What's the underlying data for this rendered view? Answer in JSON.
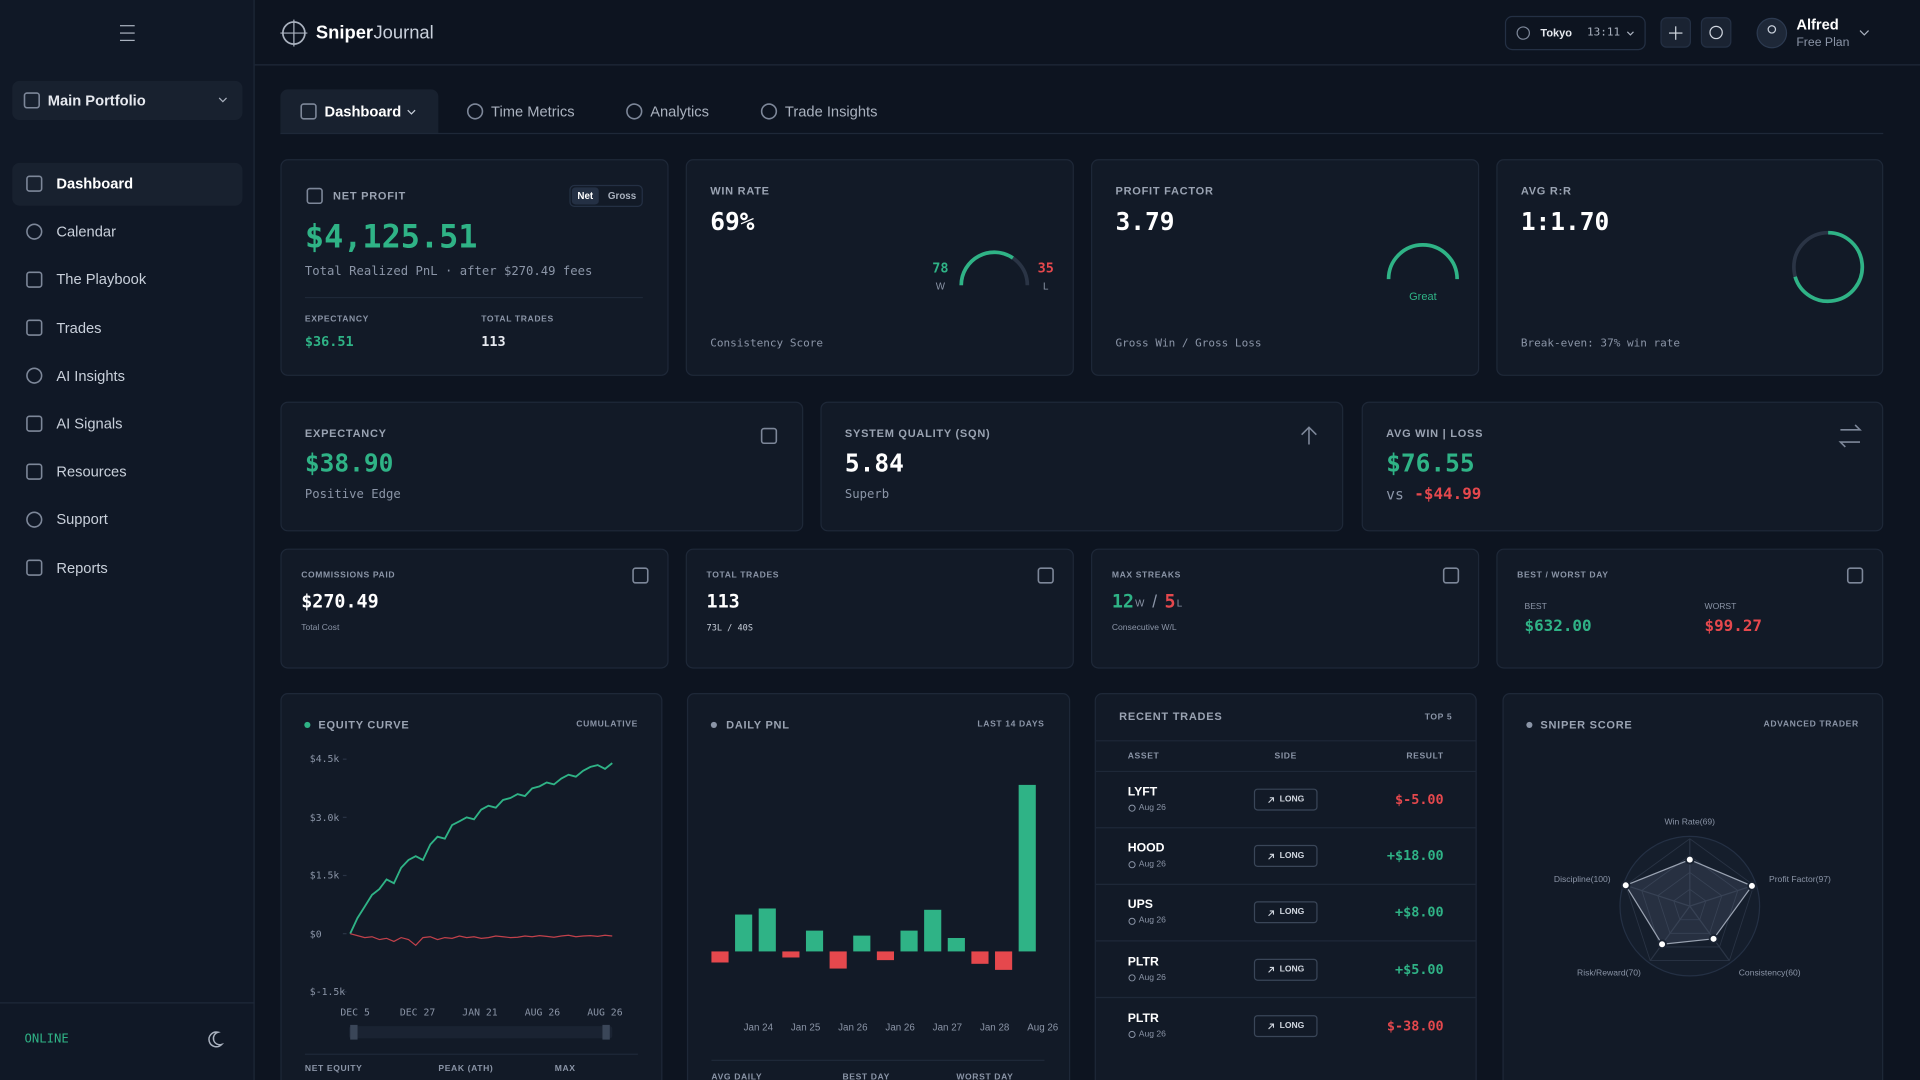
{
  "header": {
    "brand": {
      "bold": "Sniper",
      "light": "Journal"
    },
    "session": {
      "market": "Tokyo",
      "time": "13:11"
    },
    "user": {
      "name": "Alfred",
      "plan": "Free Plan"
    }
  },
  "sidebar": {
    "portfolio": "Main Portfolio",
    "nav": [
      "Dashboard",
      "Calendar",
      "The Playbook",
      "Trades",
      "AI Insights",
      "AI Signals",
      "Resources",
      "Support",
      "Reports"
    ],
    "status": "ONLINE"
  },
  "tabs": [
    "Dashboard",
    "Time Metrics",
    "Analytics",
    "Trade Insights"
  ],
  "net_profit": {
    "title": "NET PROFIT",
    "toggle": [
      "Net",
      "Gross"
    ],
    "value": "$4,125.51",
    "subtitle": "Total Realized PnL · after $270.49 fees",
    "stats": [
      {
        "label": "EXPECTANCY",
        "value": "$36.51"
      },
      {
        "label": "TOTAL TRADES",
        "value": "113"
      }
    ]
  },
  "win_rate": {
    "title": "WIN RATE",
    "value": "69%",
    "wins": 78,
    "wins_label": "W",
    "losses": 35,
    "losses_label": "L",
    "footer": "Consistency Score"
  },
  "profit_factor": {
    "title": "PROFIT FACTOR",
    "value": "3.79",
    "rating": "Great",
    "footer": "Gross Win / Gross Loss"
  },
  "avg_rr": {
    "title": "AVG R:R",
    "value": "1:1.70",
    "footer": "Break-even: 37% win rate"
  },
  "expectancy": {
    "title": "EXPECTANCY",
    "value": "$38.90",
    "subtitle": "Positive Edge"
  },
  "sqn": {
    "title": "SYSTEM QUALITY (SQN)",
    "value": "5.84",
    "subtitle": "Superb"
  },
  "avg_win_loss": {
    "title": "AVG WIN | LOSS",
    "win": "$76.55",
    "vs": "vs",
    "loss": "-$44.99"
  },
  "commissions": {
    "title": "COMMISSIONS PAID",
    "value": "$270.49",
    "subtitle": "Total Cost"
  },
  "total_trades": {
    "title": "TOTAL TRADES",
    "value": "113",
    "split": "73L / 40S"
  },
  "max_streaks": {
    "title": "MAX STREAKS",
    "wins": "12",
    "wins_unit": "W",
    "separator": "/",
    "losses": "5",
    "losses_unit": "L",
    "subtitle": "Consecutive W/L"
  },
  "best_worst": {
    "title": "BEST / WORST DAY",
    "best_label": "BEST",
    "best": "$632.00",
    "worst_label": "WORST",
    "worst": "$99.27"
  },
  "equity_curve": {
    "type": "line",
    "title": "EQUITY CURVE",
    "tag": "CUMULATIVE",
    "ylim": [
      -1500,
      4500
    ],
    "yticks": [
      {
        "value": 4500,
        "label": "$4.5k"
      },
      {
        "value": 3000,
        "label": "$3.0k"
      },
      {
        "value": 1500,
        "label": "$1.5k"
      },
      {
        "value": 0,
        "label": "$0"
      },
      {
        "value": -1500,
        "label": "$-1.5k"
      }
    ],
    "x_labels": [
      "DEC 5",
      "DEC 27",
      "JAN 21",
      "AUG 26",
      "AUG 26"
    ],
    "series": [
      {
        "color": "#2fb386",
        "values": [
          0,
          400,
          700,
          1000,
          1150,
          1400,
          1300,
          1700,
          1900,
          2000,
          1900,
          2300,
          2500,
          2450,
          2800,
          2900,
          3000,
          2950,
          3200,
          3300,
          3250,
          3450,
          3500,
          3600,
          3550,
          3750,
          3800,
          3900,
          3850,
          4000,
          4100,
          4050,
          4200,
          4300,
          4350,
          4250,
          4400
        ]
      },
      {
        "color": "#c2414b",
        "values": [
          0,
          -50,
          -100,
          -80,
          -150,
          -120,
          -200,
          -100,
          -150,
          -300,
          -100,
          -80,
          -150,
          -100,
          -120,
          -60,
          -100,
          -80,
          -120,
          -100,
          -60,
          -80,
          -100,
          -90,
          -60,
          -80,
          -50,
          -70,
          -90,
          -60,
          -40,
          -80,
          -60,
          -50,
          -70,
          -40,
          -60
        ]
      }
    ],
    "footer": [
      "NET EQUITY",
      "PEAK (ATH)",
      "MAX"
    ]
  },
  "daily_pnl": {
    "type": "bar",
    "title": "DAILY PNL",
    "tag": "LAST 14 DAYS",
    "categories": [
      null,
      "Jan 24",
      null,
      "Jan 25",
      null,
      "Jan 26",
      null,
      "Jan 26",
      null,
      "Jan 27",
      null,
      "Jan 28",
      null,
      "Aug 26"
    ],
    "values": [
      -42,
      140,
      163,
      -23,
      79,
      -65,
      60,
      -33,
      79,
      158,
      51,
      -47,
      -70,
      632
    ],
    "colors": {
      "positive": "#2fb386",
      "negative": "#e5484d"
    },
    "footer": [
      "AVG DAILY",
      "BEST DAY",
      "WORST DAY"
    ]
  },
  "recent_trades": {
    "title": "RECENT TRADES",
    "tag": "TOP 5",
    "columns": [
      "ASSET",
      "SIDE",
      "RESULT"
    ],
    "rows": [
      {
        "asset": "LYFT",
        "date": "Aug 26",
        "side": "LONG",
        "result": "$-5.00"
      },
      {
        "asset": "HOOD",
        "date": "Aug 26",
        "side": "LONG",
        "result": "+$18.00"
      },
      {
        "asset": "UPS",
        "date": "Aug 26",
        "side": "LONG",
        "result": "+$8.00"
      },
      {
        "asset": "PLTR",
        "date": "Aug 26",
        "side": "LONG",
        "result": "+$5.00"
      },
      {
        "asset": "PLTR",
        "date": "Aug 26",
        "side": "LONG",
        "result": "$-38.00"
      }
    ]
  },
  "sniper_score": {
    "type": "radar",
    "title": "SNIPER SCORE",
    "tag": "ADVANCED TRADER",
    "rlim": [
      0,
      100
    ],
    "axes": [
      {
        "label": "Win Rate(69)",
        "value": 69
      },
      {
        "label": "Profit Factor(97)",
        "value": 97
      },
      {
        "label": "Consistency(60)",
        "value": 60
      },
      {
        "label": "Risk/Reward(70)",
        "value": 70
      },
      {
        "label": "Discipline(100)",
        "value": 100
      }
    ]
  }
}
